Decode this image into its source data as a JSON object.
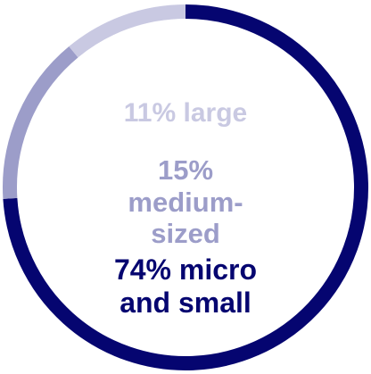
{
  "chart_data": {
    "type": "pie",
    "style": "donut-ring",
    "slices": [
      {
        "label": "74% micro and small",
        "value": 74,
        "color": "#050570"
      },
      {
        "label": "15% medium-sized",
        "value": 15,
        "color": "#9c9dc9"
      },
      {
        "label": "11% large",
        "value": 11,
        "color": "#c9c9e2"
      }
    ],
    "start": "top",
    "direction": "clockwise"
  }
}
